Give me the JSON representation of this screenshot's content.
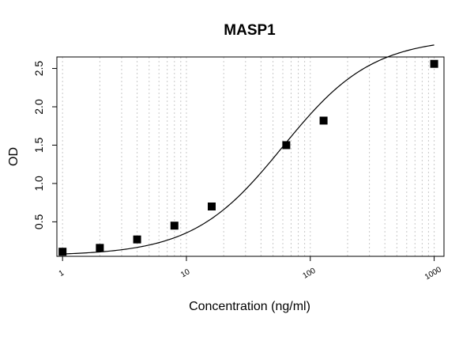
{
  "chart_data": {
    "type": "scatter",
    "title": "MASP1",
    "xlabel": "Concentration (ng/ml)",
    "ylabel": "OD",
    "x_scale": "log",
    "xlim": [
      0.9,
      1200
    ],
    "ylim": [
      0.05,
      2.65
    ],
    "x_ticks": [
      1,
      10,
      100,
      1000
    ],
    "x_tick_labels": [
      "1",
      "10",
      "100",
      "1000"
    ],
    "y_ticks": [
      0.5,
      1.0,
      1.5,
      2.0,
      2.5
    ],
    "y_tick_labels": [
      "0.5",
      "1.0",
      "1.5",
      "2.0",
      "2.5"
    ],
    "grid": "vertical dotted at log minor ticks",
    "series": [
      {
        "x": [
          1,
          2,
          4,
          8,
          16,
          64,
          128,
          1000
        ],
        "y": [
          0.11,
          0.16,
          0.27,
          0.45,
          0.7,
          1.5,
          1.82,
          2.56
        ],
        "fit": "4PL",
        "fit_params": {
          "A": 0.06,
          "D": 2.9,
          "C": 60,
          "B": 1.2
        }
      }
    ],
    "colors": {
      "points": "#000000",
      "curve": "#000000",
      "grid": "#c8c8c8"
    }
  }
}
